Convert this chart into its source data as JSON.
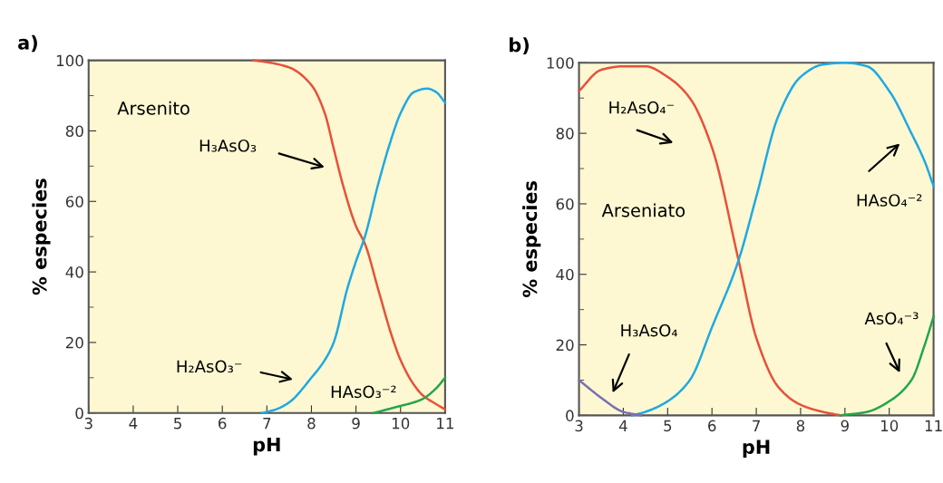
{
  "chart_data": [
    {
      "type": "line",
      "title": "a)",
      "xlabel": "pH",
      "ylabel": "% especies",
      "xlim": [
        3,
        11
      ],
      "ylim": [
        0,
        100
      ],
      "xticks": [
        3,
        4,
        5,
        6,
        7,
        8,
        9,
        10,
        11
      ],
      "yticks": [
        0,
        20,
        40,
        60,
        80,
        100
      ],
      "grid": false,
      "legend": false,
      "marker": "none",
      "line_style": "solid",
      "series": [
        {
          "color": "#e8503a",
          "x": [
            6.7,
            7.0,
            7.5,
            8.0,
            8.3,
            8.5,
            8.7,
            9.0,
            9.2,
            9.5,
            9.8,
            10.0,
            10.3,
            10.5,
            10.8,
            11.0
          ],
          "values": [
            100,
            99.5,
            98,
            93,
            85,
            75,
            65,
            53,
            48,
            35,
            22,
            15,
            8,
            5,
            2.5,
            1
          ]
        },
        {
          "color": "#1fa9e1",
          "x": [
            6.9,
            7.2,
            7.5,
            8.0,
            8.3,
            8.5,
            8.8,
            9.0,
            9.2,
            9.5,
            9.8,
            10.0,
            10.3,
            10.6,
            10.8,
            11.0
          ],
          "values": [
            0,
            1,
            3,
            10,
            15,
            20,
            35,
            43,
            50,
            65,
            78,
            85,
            91,
            92,
            91,
            88
          ]
        },
        {
          "color": "#23a54a",
          "x": [
            9.4,
            9.7,
            10.0,
            10.3,
            10.5,
            10.8,
            11.0
          ],
          "values": [
            0,
            1,
            2,
            3,
            4,
            7,
            10
          ]
        }
      ],
      "annotations": [
        "Arsenito",
        "H₃AsO₃",
        "H₂AsO₃⁻",
        "HAsO₃⁻²"
      ]
    },
    {
      "type": "line",
      "title": "b)",
      "xlabel": "pH",
      "ylabel": "% especies",
      "xlim": [
        3,
        11
      ],
      "ylim": [
        0,
        100
      ],
      "xticks": [
        3,
        4,
        5,
        6,
        7,
        8,
        9,
        10,
        11
      ],
      "yticks": [
        0,
        20,
        40,
        60,
        80,
        100
      ],
      "grid": false,
      "legend": false,
      "marker": "none",
      "line_style": "solid",
      "series": [
        {
          "color": "#e8503a",
          "x": [
            3.0,
            3.5,
            4.0,
            4.5,
            5.0,
            5.5,
            6.0,
            6.6,
            7.0,
            7.5,
            8.0,
            8.5,
            8.9
          ],
          "values": [
            92,
            98,
            99,
            99,
            96,
            90,
            76,
            44,
            22,
            8,
            3,
            1,
            0
          ]
        },
        {
          "color": "#1fa9e1",
          "x": [
            4.2,
            4.5,
            5.0,
            5.5,
            6.0,
            6.6,
            7.0,
            7.5,
            8.0,
            8.5,
            9.0,
            9.5,
            10.0,
            10.5,
            10.8,
            11.0
          ],
          "values": [
            0,
            1,
            4,
            10,
            25,
            44,
            62,
            85,
            96,
            99.5,
            100,
            99,
            92,
            80,
            72,
            65
          ]
        },
        {
          "color": "#7b6fb0",
          "x": [
            3.0,
            3.5,
            4.0,
            4.4
          ],
          "values": [
            10,
            5,
            1,
            0
          ]
        },
        {
          "color": "#23a54a",
          "x": [
            8.9,
            9.5,
            10.0,
            10.5,
            10.8,
            11.0
          ],
          "values": [
            0,
            1,
            4,
            10,
            20,
            28
          ]
        }
      ],
      "annotations": [
        "Arseniato",
        "H₂AsO₄⁻",
        "HAsO₄⁻²",
        "H₃AsO₄",
        "AsO₄⁻³"
      ]
    }
  ]
}
